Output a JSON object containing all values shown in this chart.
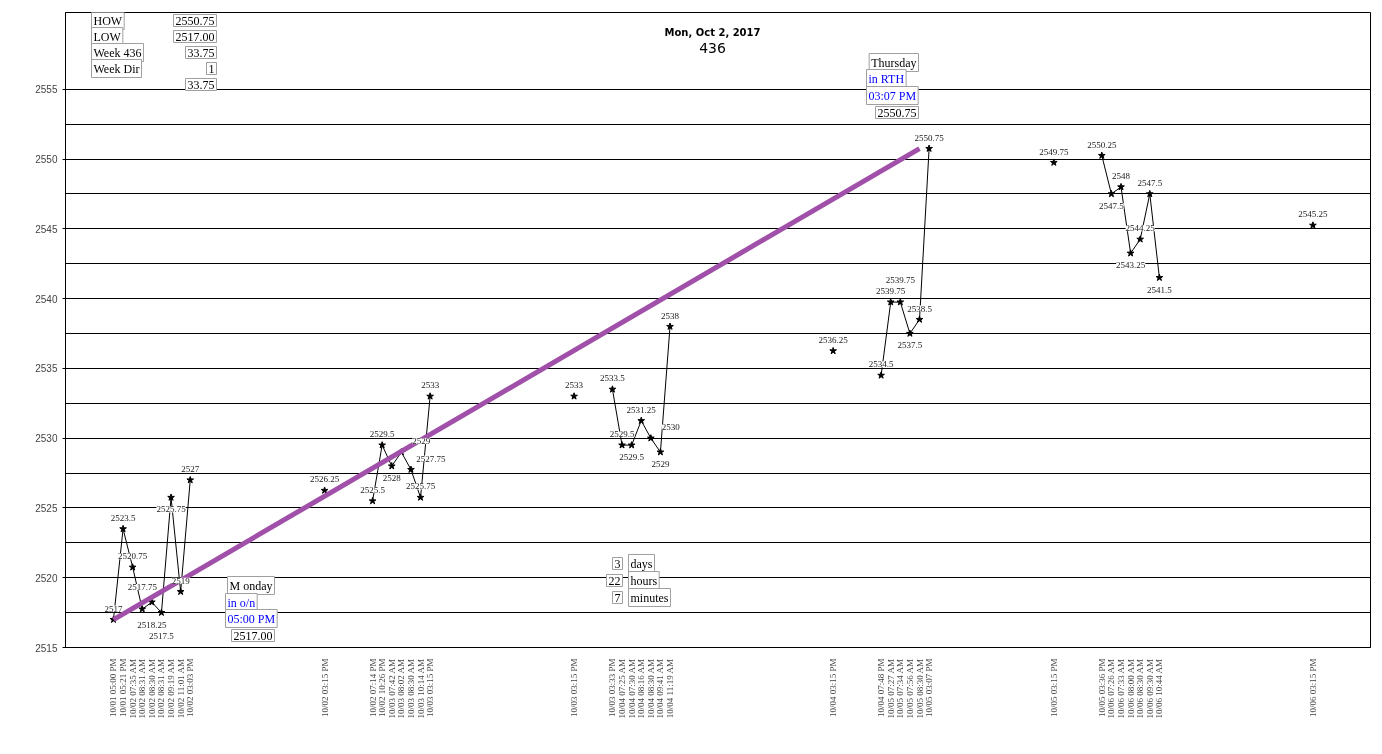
{
  "chart_data": {
    "type": "line",
    "title": "Mon, Oct 2, 2017",
    "subtitle": "436",
    "categories": [
      "10/01 05:00 PM",
      "10/01 05:21 PM",
      "10/02 07:35 AM",
      "10/02 08:31 AM",
      "10/02 08:30 AM",
      "10/02 08:31 AM",
      "10/02 09:19 AM",
      "10/02 11:01 AM",
      "10/02 03:03 PM",
      null,
      null,
      null,
      null,
      null,
      null,
      null,
      null,
      null,
      null,
      null,
      null,
      null,
      "10/02 03:15 PM",
      null,
      null,
      null,
      null,
      "10/02 07:14 PM",
      "10/02 10:26 PM",
      "10/03 07:42 AM",
      "10/03 08:02 AM",
      "10/03 08:30 AM",
      "10/03 10:14 AM",
      "10/03 03:15 PM",
      null,
      null,
      null,
      null,
      null,
      null,
      null,
      null,
      null,
      null,
      null,
      null,
      null,
      null,
      "10/03 03:15 PM",
      null,
      null,
      null,
      "10/03 03:33 PM",
      "10/04 07:25 AM",
      "10/04 07:30 AM",
      "10/04 08:16 AM",
      "10/04 08:30 AM",
      "10/04 09:41 AM",
      "10/04 11:19 AM",
      null,
      null,
      null,
      null,
      null,
      null,
      null,
      null,
      null,
      null,
      null,
      null,
      null,
      null,
      null,
      null,
      "10/04 03:15 PM",
      null,
      null,
      null,
      null,
      "10/04 07:48 PM",
      "10/05 07:27 AM",
      "10/05 07:34 AM",
      "10/05 07:56 AM",
      "10/05 08:30 AM",
      "10/05 03:07 PM",
      null,
      null,
      null,
      null,
      null,
      null,
      null,
      null,
      null,
      null,
      null,
      null,
      "10/05 03:15 PM",
      null,
      null,
      null,
      null,
      "10/05 03:36 PM",
      "10/06 07:26 AM",
      "10/06 07:33 AM",
      "10/06 08:00 AM",
      "10/06 08:30 AM",
      "10/06 09:30 AM",
      "10/06 10:44 AM",
      null,
      null,
      null,
      null,
      null,
      null,
      null,
      null,
      null,
      null,
      null,
      null,
      null,
      null,
      null,
      "10/06 03:15 PM"
    ],
    "series": [
      {
        "color": "#000000",
        "data_labels": true,
        "values": [
          2517,
          2523.5,
          2520.75,
          2517.75,
          2518.25,
          2517.5,
          2525.75,
          2519,
          2527,
          null,
          null,
          null,
          null,
          null,
          null,
          null,
          null,
          null,
          null,
          null,
          null,
          null,
          2526.25,
          null,
          null,
          null,
          null,
          2525.5,
          2529.5,
          2528,
          2529,
          2527.75,
          2525.75,
          2533,
          null,
          null,
          null,
          null,
          null,
          null,
          null,
          null,
          null,
          null,
          null,
          null,
          null,
          null,
          2533,
          null,
          null,
          null,
          2533.5,
          2529.5,
          2529.5,
          2531.25,
          2530,
          2529,
          2538,
          null,
          null,
          null,
          null,
          null,
          null,
          null,
          null,
          null,
          null,
          null,
          null,
          null,
          null,
          null,
          null,
          2536.25,
          null,
          null,
          null,
          null,
          2534.5,
          2539.75,
          2539.75,
          2537.5,
          2538.5,
          2550.75,
          null,
          null,
          null,
          null,
          null,
          null,
          null,
          null,
          null,
          null,
          null,
          null,
          2549.75,
          null,
          null,
          null,
          null,
          2550.25,
          2547.5,
          2548,
          2543.25,
          2544.25,
          2547.5,
          2541.5,
          null,
          null,
          null,
          null,
          null,
          null,
          null,
          null,
          null,
          null,
          null,
          null,
          null,
          null,
          null,
          2545.25
        ]
      },
      {
        "type": "line",
        "color": "#a050a8",
        "marker": "none",
        "x": [
          "10/01 05:00 PM",
          "10/05 08:30 AM"
        ],
        "values": [
          2517,
          2550.75
        ]
      }
    ],
    "ylim": [
      2515,
      2560.5
    ],
    "yticks": [
      2515,
      {
        "value": 2517.5,
        "label": null
      },
      2520,
      {
        "value": 2522.5,
        "label": null
      },
      2525,
      {
        "value": 2527.5,
        "label": null
      },
      2530,
      {
        "value": 2532.5,
        "label": null
      },
      2535,
      {
        "value": 2537.5,
        "label": null
      },
      2540,
      {
        "value": 2542.5,
        "label": null
      },
      2545,
      {
        "value": 2547.5,
        "label": null
      },
      2550,
      {
        "value": 2552.5,
        "label": null
      },
      2555
    ],
    "grid": "y",
    "marker": "star",
    "annotations": [
      "HOW",
      "2550.75",
      "LOW",
      "2517.00",
      "Week 436",
      "33.75",
      "Week Dir",
      "1",
      "33.75",
      "Thursday",
      "in RTH",
      "03:07 PM",
      "2550.75",
      "M onday",
      "in o/n",
      "05:00 PM",
      "2517.00",
      "3",
      "days",
      "22",
      "hours",
      "7",
      "minutes"
    ]
  }
}
